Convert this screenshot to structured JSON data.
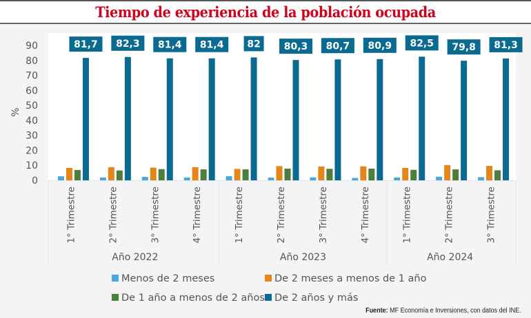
{
  "title": "Tiempo de experiencia de la población ocupada",
  "source_label": "Fuente:",
  "source_text": "MF Economía e Inversiones, con datos del INE.",
  "chart_data": {
    "type": "bar",
    "title": "Tiempo de experiencia de la población ocupada",
    "ylabel": "%",
    "xlabel": "",
    "ylim": [
      0,
      90
    ],
    "yticks": [
      0,
      10,
      20,
      30,
      40,
      50,
      60,
      70,
      80,
      90
    ],
    "grid": false,
    "legend_position": "bottom",
    "categories": [
      "1° Trimestre",
      "2° Trimestre",
      "3° Trimestre",
      "4° Trimestre",
      "1° Trimestre",
      "2° Trimestre",
      "3° Trimestre",
      "4° Trimestre",
      "1° Trimestre",
      "2° Trimestre",
      "3° Trimestre"
    ],
    "groups": [
      {
        "label": "Año 2022",
        "count": 4
      },
      {
        "label": "Año 2023",
        "count": 4
      },
      {
        "label": "Año 2024",
        "count": 3
      }
    ],
    "series": [
      {
        "name": "Menos de 2 meses",
        "color": "#4aa8dc",
        "values": [
          2.7,
          1.9,
          2.3,
          1.9,
          2.8,
          1.8,
          2.0,
          1.6,
          1.9,
          2.4,
          2.1
        ]
      },
      {
        "name": "De 2 meses a menos de 1 año",
        "color": "#e5861a",
        "values": [
          8.3,
          8.8,
          8.5,
          8.8,
          7.6,
          9.5,
          9.2,
          9.3,
          8.3,
          10.2,
          9.6
        ]
      },
      {
        "name": "De 1 año a menos de 2 años",
        "color": "#4e7e3c",
        "values": [
          6.9,
          6.6,
          7.5,
          7.3,
          7.3,
          7.8,
          7.7,
          7.8,
          7.0,
          7.3,
          6.7
        ]
      },
      {
        "name": "De 2 años y más",
        "color": "#0b6a90",
        "values": [
          81.7,
          82.3,
          81.4,
          81.4,
          82.0,
          80.3,
          80.7,
          80.9,
          82.5,
          79.8,
          81.3
        ]
      }
    ],
    "data_labels": [
      "81,7",
      "82,3",
      "81,4",
      "81,4",
      "82",
      "80,3",
      "80,7",
      "80,9",
      "82,5",
      "79,8",
      "81,3"
    ]
  }
}
